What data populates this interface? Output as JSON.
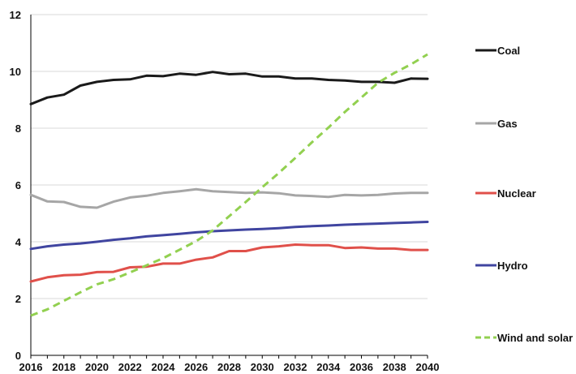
{
  "chart_data": {
    "type": "line",
    "title": "",
    "xlabel": "",
    "ylabel": "",
    "xlim": [
      2016,
      2040
    ],
    "ylim": [
      0,
      12
    ],
    "x_ticks": [
      "2016",
      "2018",
      "2020",
      "2022",
      "2024",
      "2026",
      "2028",
      "2030",
      "2032",
      "2034",
      "2036",
      "2038",
      "2040"
    ],
    "y_ticks": [
      "0",
      "2",
      "4",
      "6",
      "8",
      "10",
      "12"
    ],
    "grid": "horizontal",
    "legend_position": "right",
    "x": [
      2016,
      2017,
      2018,
      2019,
      2020,
      2021,
      2022,
      2023,
      2024,
      2025,
      2026,
      2027,
      2028,
      2029,
      2030,
      2031,
      2032,
      2033,
      2034,
      2035,
      2036,
      2037,
      2038,
      2039,
      2040
    ],
    "series": [
      {
        "name": "Coal",
        "color": "#1a1a1a",
        "dash": "solid",
        "values": [
          8.85,
          9.08,
          9.18,
          9.5,
          9.63,
          9.7,
          9.72,
          9.85,
          9.83,
          9.92,
          9.88,
          9.98,
          9.9,
          9.92,
          9.82,
          9.82,
          9.75,
          9.75,
          9.7,
          9.68,
          9.63,
          9.63,
          9.6,
          9.75,
          9.74
        ]
      },
      {
        "name": "Gas",
        "color": "#a6a6a6",
        "dash": "solid",
        "values": [
          5.65,
          5.42,
          5.4,
          5.23,
          5.2,
          5.41,
          5.56,
          5.62,
          5.72,
          5.78,
          5.85,
          5.78,
          5.75,
          5.72,
          5.74,
          5.71,
          5.63,
          5.61,
          5.58,
          5.65,
          5.63,
          5.65,
          5.7,
          5.72,
          5.72
        ]
      },
      {
        "name": "Nuclear",
        "color": "#e0504a",
        "dash": "solid",
        "values": [
          2.6,
          2.75,
          2.82,
          2.84,
          2.93,
          2.94,
          3.1,
          3.12,
          3.23,
          3.23,
          3.37,
          3.45,
          3.67,
          3.67,
          3.8,
          3.84,
          3.9,
          3.88,
          3.88,
          3.78,
          3.8,
          3.76,
          3.76,
          3.71,
          3.71
        ]
      },
      {
        "name": "Hydro",
        "color": "#4045a0",
        "dash": "solid",
        "values": [
          3.75,
          3.84,
          3.9,
          3.94,
          4.0,
          4.07,
          4.12,
          4.19,
          4.23,
          4.28,
          4.33,
          4.37,
          4.4,
          4.43,
          4.45,
          4.48,
          4.52,
          4.55,
          4.57,
          4.6,
          4.62,
          4.64,
          4.66,
          4.68,
          4.7
        ]
      },
      {
        "name": "Wind and solar",
        "color": "#92d050",
        "dash": "dashed",
        "values": [
          1.4,
          1.62,
          1.92,
          2.22,
          2.5,
          2.68,
          2.92,
          3.17,
          3.42,
          3.72,
          4.02,
          4.4,
          4.9,
          5.4,
          5.92,
          6.42,
          6.95,
          7.5,
          8.02,
          8.57,
          9.08,
          9.6,
          9.95,
          10.25,
          10.6
        ]
      }
    ]
  }
}
